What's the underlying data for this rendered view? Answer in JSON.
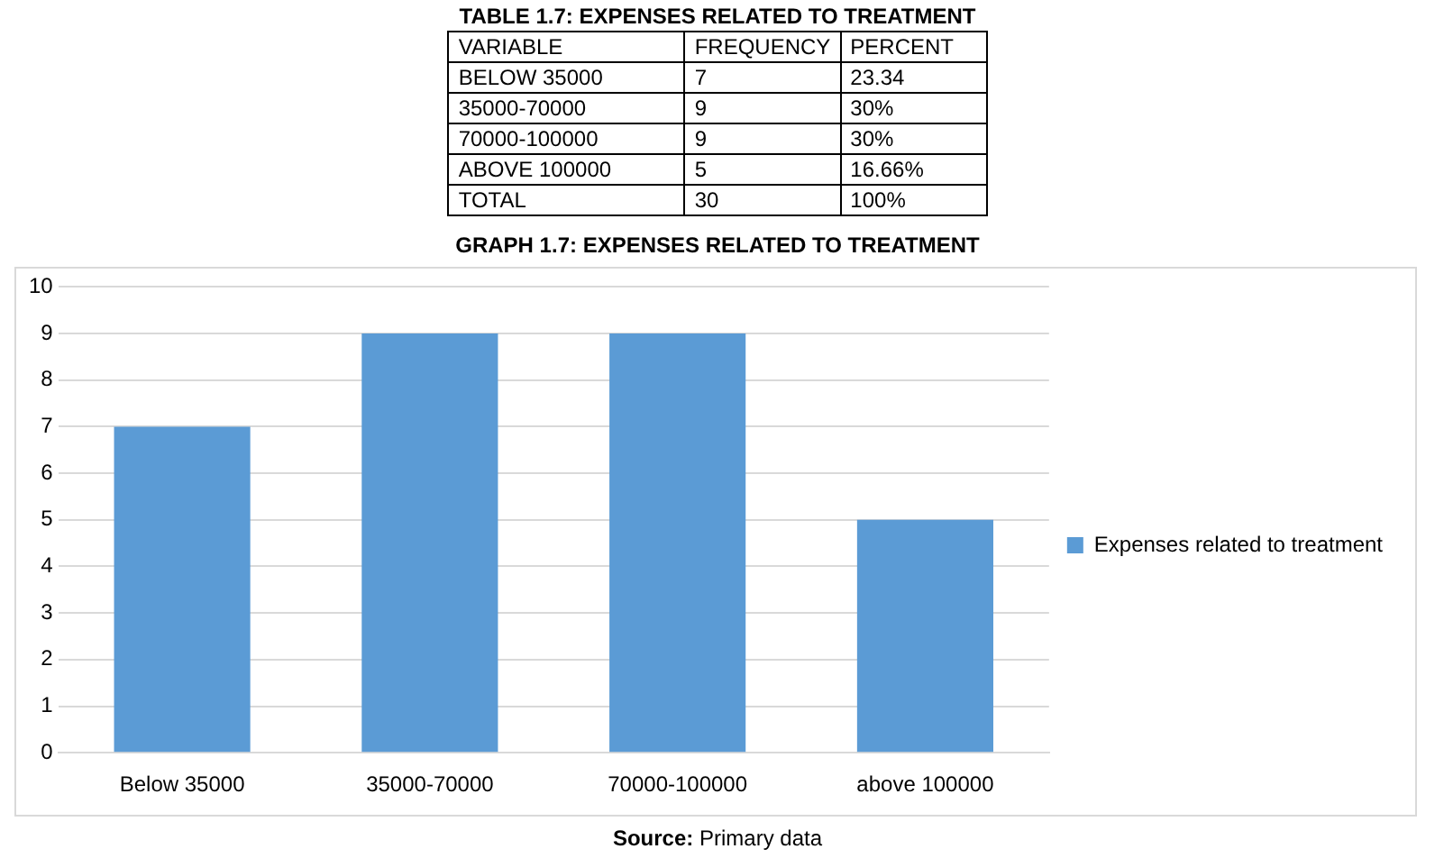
{
  "chart_data": [
    {
      "type": "other",
      "title": "TABLE 1.7: EXPENSES RELATED TO TREATMENT",
      "annotations": [
        "VARIABLE",
        "FREQUENCY",
        "PERCENT",
        "BELOW 35000",
        "7",
        "23.34",
        "35000-70000",
        "9",
        "30%",
        "70000-100000",
        "9",
        "30%",
        "ABOVE 100000",
        "5",
        "16.66%",
        "TOTAL",
        "30",
        "100%"
      ]
    },
    {
      "type": "bar",
      "title": "GRAPH 1.7: EXPENSES RELATED TO TREATMENT",
      "categories": [
        "Below 35000",
        "35000-70000",
        "70000-100000",
        "above 100000"
      ],
      "series": [
        {
          "name": "Expenses related to treatment",
          "color": "#5b9bd5",
          "values": [
            7,
            9,
            9,
            5
          ]
        }
      ],
      "ylim": [
        0,
        10
      ],
      "yticks": [
        0,
        1,
        2,
        3,
        4,
        5,
        6,
        7,
        8,
        9,
        10
      ],
      "grid": "y",
      "legend": "right",
      "annotations": [
        "Source: Primary data"
      ]
    }
  ]
}
